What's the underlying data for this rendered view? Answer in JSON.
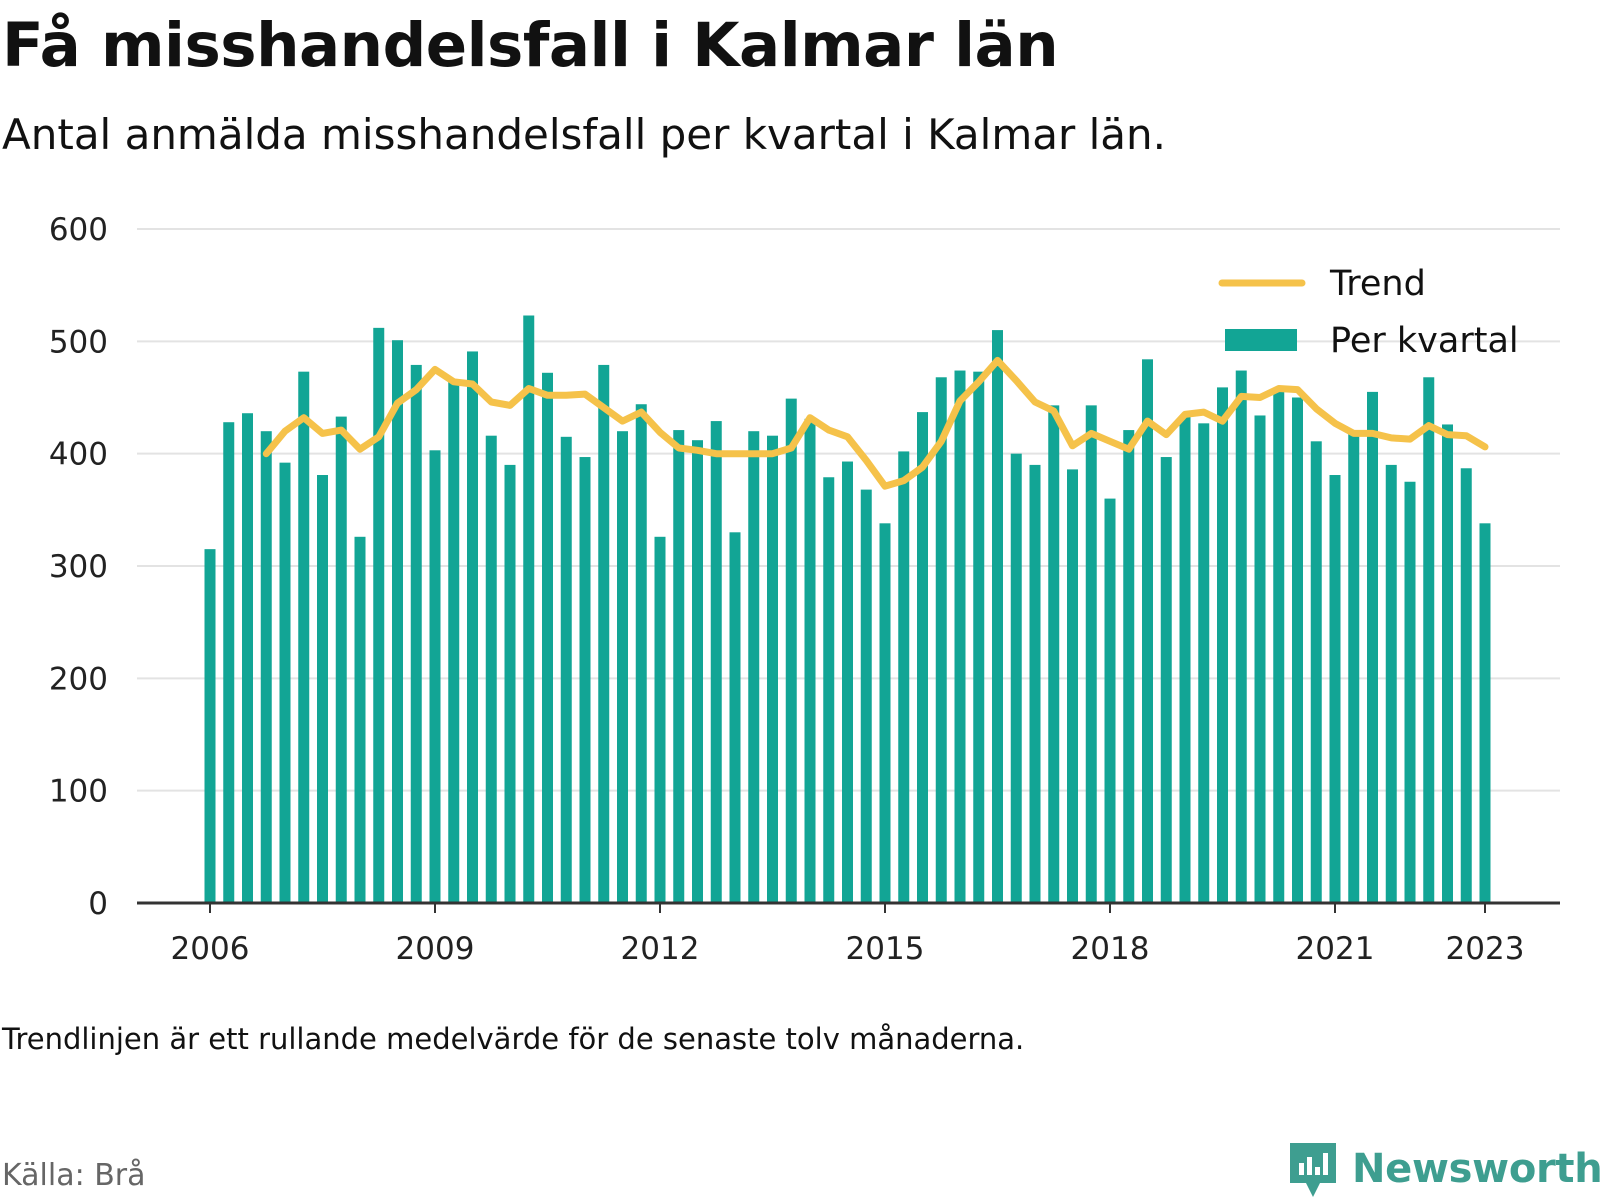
{
  "title": "Få misshandelsfall i Kalmar län",
  "subtitle": "Antal anmälda misshandelsfall per kvartal i Kalmar län.",
  "footnote": "Trendlinjen är ett rullande medelvärde för de senaste tolv månaderna.",
  "source": "Källa: Brå",
  "brand": {
    "name": "Newsworthy",
    "icon": "newsworthy-logo-icon"
  },
  "colors": {
    "bars": "#12a595",
    "trend": "#f5c24a",
    "grid": "#e3e3e3",
    "axis": "#333333",
    "brand": "#3e9e90"
  },
  "chart_data": {
    "type": "bar",
    "x_axis": {
      "range": [
        2006.0,
        2023.75
      ],
      "ticks": [
        2006,
        2009,
        2012,
        2015,
        2018,
        2021,
        2023
      ]
    },
    "y_axis": {
      "range": [
        0,
        600
      ],
      "ticks": [
        0,
        100,
        200,
        300,
        400,
        500,
        600
      ]
    },
    "grid": true,
    "legend": {
      "position": "top-right",
      "entries": [
        {
          "label": "Trend",
          "kind": "line"
        },
        {
          "label": "Per kvartal",
          "kind": "bar"
        }
      ]
    },
    "series": [
      {
        "name": "Per kvartal",
        "kind": "bar",
        "x": [
          "2006Q1",
          "2006Q2",
          "2006Q3",
          "2006Q4",
          "2007Q1",
          "2007Q2",
          "2007Q3",
          "2007Q4",
          "2008Q1",
          "2008Q2",
          "2008Q3",
          "2008Q4",
          "2009Q1",
          "2009Q2",
          "2009Q3",
          "2009Q4",
          "2010Q1",
          "2010Q2",
          "2010Q3",
          "2010Q4",
          "2011Q1",
          "2011Q2",
          "2011Q3",
          "2011Q4",
          "2012Q1",
          "2012Q2",
          "2012Q3",
          "2012Q4",
          "2013Q1",
          "2013Q2",
          "2013Q3",
          "2013Q4",
          "2014Q1",
          "2014Q2",
          "2014Q3",
          "2014Q4",
          "2015Q1",
          "2015Q2",
          "2015Q3",
          "2015Q4",
          "2016Q1",
          "2016Q2",
          "2016Q3",
          "2016Q4",
          "2017Q1",
          "2017Q2",
          "2017Q3",
          "2017Q4",
          "2018Q1",
          "2018Q2",
          "2018Q3",
          "2018Q4",
          "2019Q1",
          "2019Q2",
          "2019Q3",
          "2019Q4",
          "2020Q1",
          "2020Q2",
          "2020Q3",
          "2020Q4",
          "2021Q1",
          "2021Q2",
          "2021Q3",
          "2021Q4",
          "2022Q1",
          "2022Q2",
          "2022Q3",
          "2022Q4",
          "2023Q1"
        ],
        "values": [
          315,
          428,
          436,
          420,
          392,
          473,
          381,
          433,
          326,
          512,
          501,
          479,
          403,
          465,
          491,
          416,
          390,
          523,
          472,
          415,
          397,
          479,
          420,
          444,
          326,
          421,
          412,
          429,
          330,
          420,
          416,
          449,
          431,
          379,
          393,
          368,
          338,
          402,
          437,
          468,
          474,
          473,
          510,
          400,
          390,
          443,
          386,
          443,
          360,
          421,
          484,
          397,
          433,
          427,
          459,
          474,
          434,
          455,
          450,
          411,
          381,
          418,
          455,
          390,
          375,
          468,
          426,
          387,
          338
        ]
      },
      {
        "name": "Trend",
        "kind": "line",
        "x": [
          "2006Q4",
          "2007Q1",
          "2007Q2",
          "2007Q3",
          "2007Q4",
          "2008Q1",
          "2008Q2",
          "2008Q3",
          "2008Q4",
          "2009Q1",
          "2009Q2",
          "2009Q3",
          "2009Q4",
          "2010Q1",
          "2010Q2",
          "2010Q3",
          "2010Q4",
          "2011Q1",
          "2011Q2",
          "2011Q3",
          "2011Q4",
          "2012Q1",
          "2012Q2",
          "2012Q3",
          "2012Q4",
          "2013Q1",
          "2013Q2",
          "2013Q3",
          "2013Q4",
          "2014Q1",
          "2014Q2",
          "2014Q3",
          "2014Q4",
          "2015Q1",
          "2015Q2",
          "2015Q3",
          "2015Q4",
          "2016Q1",
          "2016Q2",
          "2016Q3",
          "2016Q4",
          "2017Q1",
          "2017Q2",
          "2017Q3",
          "2017Q4",
          "2018Q1",
          "2018Q2",
          "2018Q3",
          "2018Q4",
          "2019Q1",
          "2019Q2",
          "2019Q3",
          "2019Q4",
          "2020Q1",
          "2020Q2",
          "2020Q3",
          "2020Q4",
          "2021Q1",
          "2021Q2",
          "2021Q3",
          "2021Q4",
          "2022Q1",
          "2022Q2",
          "2022Q3",
          "2022Q4",
          "2023Q1"
        ],
        "values": [
          400,
          420,
          432,
          418,
          421,
          404,
          415,
          445,
          457,
          475,
          464,
          462,
          446,
          443,
          458,
          452,
          452,
          453,
          441,
          429,
          437,
          419,
          405,
          403,
          400,
          400,
          400,
          400,
          405,
          432,
          421,
          415,
          394,
          371,
          376,
          388,
          411,
          447,
          464,
          483,
          465,
          446,
          438,
          407,
          418,
          411,
          404,
          429,
          417,
          435,
          437,
          429,
          451,
          450,
          458,
          457,
          440,
          427,
          418,
          418,
          414,
          413,
          425,
          417,
          416,
          406
        ]
      }
    ]
  }
}
